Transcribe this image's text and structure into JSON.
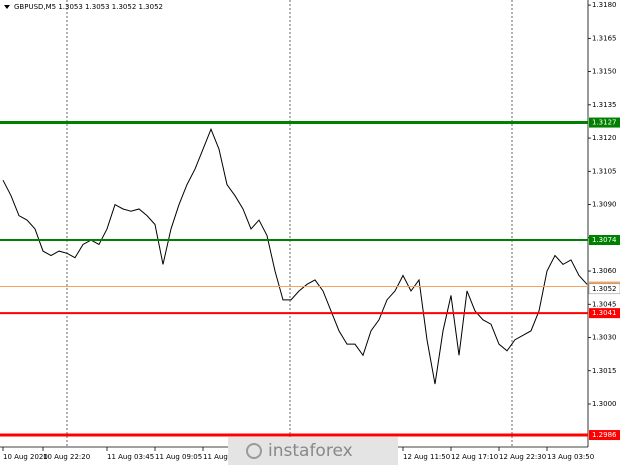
{
  "chart_data": {
    "type": "line",
    "title": "GBPUSD,M5  1.3053 1.3053 1.3052 1.3052",
    "series": [
      {
        "color": "#000000",
        "values": [
          1.3101,
          1.3094,
          1.3085,
          1.3083,
          1.3079,
          1.3069,
          1.3067,
          1.3069,
          1.3068,
          1.3066,
          1.3072,
          1.3074,
          1.3072,
          1.3079,
          1.309,
          1.3088,
          1.3087,
          1.3088,
          1.3085,
          1.3081,
          1.3063,
          1.3079,
          1.309,
          1.3099,
          1.3106,
          1.3115,
          1.3124,
          1.3115,
          1.3099,
          1.3094,
          1.3088,
          1.3079,
          1.3083,
          1.3076,
          1.306,
          1.3047,
          1.3047,
          1.3051,
          1.3054,
          1.3056,
          1.3051,
          1.3042,
          1.3033,
          1.3027,
          1.3027,
          1.3022,
          1.3033,
          1.3038,
          1.3047,
          1.3051,
          1.3058,
          1.3051,
          1.3056,
          1.3029,
          1.3009,
          1.3033,
          1.3049,
          1.3022,
          1.3051,
          1.3042,
          1.3038,
          1.3036,
          1.3027,
          1.3024,
          1.3029,
          1.3031,
          1.3033,
          1.3042,
          1.306,
          1.3067,
          1.3063,
          1.3065,
          1.3058,
          1.3054
        ]
      }
    ],
    "xlim": [
      0,
      73
    ],
    "xticks": [
      {
        "value": 0,
        "label": "10 Aug 2020"
      },
      {
        "value": 5,
        "label": "10 Aug 22:20"
      },
      {
        "value": 13,
        "label": "11 Aug 03:45"
      },
      {
        "value": 19,
        "label": "11 Aug 09:05"
      },
      {
        "value": 25,
        "label": "11 Aug"
      },
      {
        "value": 50,
        "label": "12 Aug 11:50"
      },
      {
        "value": 56,
        "label": "12 Aug 17:10"
      },
      {
        "value": 62,
        "label": "12 Aug 22:30"
      },
      {
        "value": 68,
        "label": "13 Aug 03:50"
      }
    ],
    "ylim": [
      1.29806,
      1.31823
    ],
    "yticks": [
      {
        "value": 1.318,
        "label": "1.3180"
      },
      1.3165,
      {
        "value": 1.315,
        "label": "1.3150"
      },
      1.3135,
      {
        "value": 1.312,
        "label": "1.3120"
      },
      1.3105,
      {
        "value": 1.309,
        "label": "1.3090"
      },
      1.3075,
      {
        "value": 1.306,
        "label": "1.3060"
      },
      1.3045,
      {
        "value": 1.303,
        "label": "1.3030"
      },
      1.3015,
      {
        "value": 1.3,
        "label": "1.3000"
      }
    ],
    "levels": [
      {
        "value": 1.3127,
        "color": "#008000"
      },
      {
        "value": 1.3074,
        "color": "#008000"
      },
      {
        "value": 1.3053,
        "color": "#f4a460"
      },
      {
        "value": 1.3041,
        "color": "#ff0000"
      },
      {
        "value": 1.2986,
        "color": "#ff0000"
      }
    ],
    "last_price": 1.3052,
    "watermark": "instaforex"
  }
}
